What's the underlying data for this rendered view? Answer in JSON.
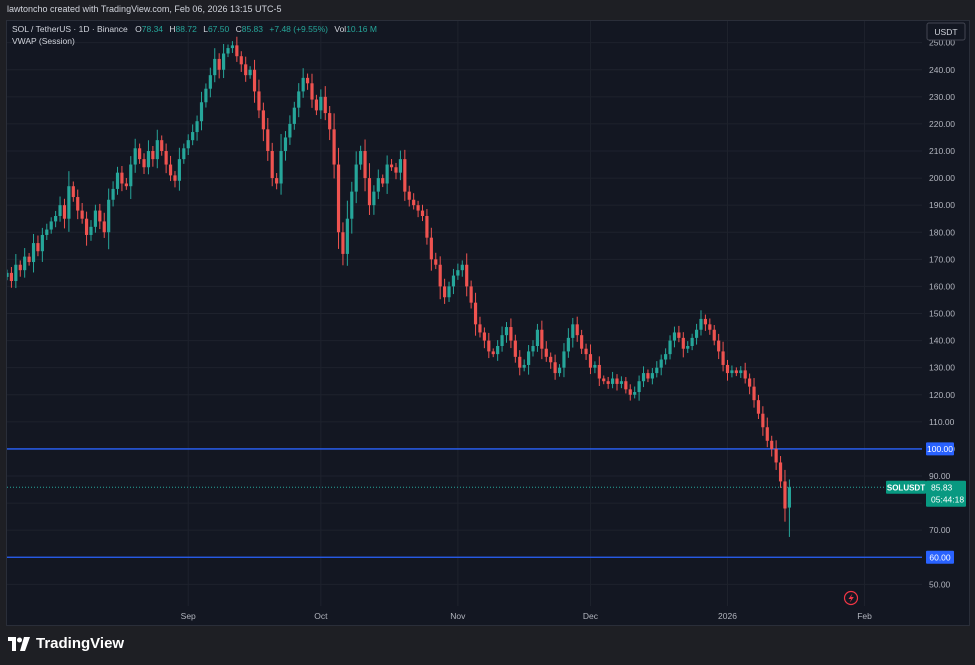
{
  "header": {
    "credit": "lawtoncho created with TradingView.com, Feb 06, 2026 13:15 UTC-5"
  },
  "legend": {
    "symbol": "SOL / TetherUS · 1D · Binance",
    "o_label": "O",
    "o": "78.34",
    "h_label": "H",
    "h": "88.72",
    "l_label": "L",
    "l": "67.50",
    "c_label": "C",
    "c": "85.83",
    "change": "+7.48 (+9.55%)",
    "vol_label": "Vol",
    "vol": "10.16 M",
    "indicator": "VWAP (Session)"
  },
  "currency_button": "USDT",
  "price_tag": {
    "symbol": "SOLUSDT",
    "price": "85.83",
    "countdown": "05:44:18"
  },
  "levels": [
    {
      "value": 100,
      "label": "100.00"
    },
    {
      "value": 60,
      "label": "60.00"
    }
  ],
  "footer": {
    "brand": "TradingView"
  },
  "colors": {
    "up": "#26a69a",
    "down": "#ef5350",
    "level": "#2962ff",
    "background": "#131722",
    "grid": "#1e222d",
    "text": "#b2b5be"
  },
  "chart_data": {
    "type": "candlestick",
    "title": "SOL / TetherUS · 1D · Binance",
    "y_axis": {
      "range": [
        42,
        258
      ],
      "ticks": [
        50,
        60,
        70,
        80,
        90,
        100,
        110,
        120,
        130,
        140,
        150,
        160,
        170,
        180,
        190,
        200,
        210,
        220,
        230,
        240,
        250
      ],
      "position": "right"
    },
    "x_axis": {
      "range": [
        "2025-07-22",
        "2026-02-14"
      ],
      "ticks": [
        {
          "date": "2025-09-01",
          "label": "Sep"
        },
        {
          "date": "2025-10-01",
          "label": "Oct"
        },
        {
          "date": "2025-11-01",
          "label": "Nov"
        },
        {
          "date": "2025-12-01",
          "label": "Dec"
        },
        {
          "date": "2026-01-01",
          "label": "2026"
        },
        {
          "date": "2026-02-01",
          "label": "Feb"
        }
      ]
    },
    "grid": true,
    "horizontal_lines": [
      100,
      60
    ],
    "last_price": 85.83,
    "series_start": "2025-07-22",
    "closes": [
      165,
      162,
      168,
      166,
      171,
      169,
      176,
      173,
      179,
      181,
      184,
      186,
      190,
      185,
      197,
      193,
      188,
      185,
      179,
      182,
      188,
      184,
      180,
      192,
      196,
      202,
      198,
      197,
      205,
      211,
      207,
      204,
      210,
      207,
      214,
      210,
      205,
      201,
      199,
      207,
      211,
      214,
      217,
      221,
      228,
      233,
      238,
      244,
      240,
      246,
      248,
      249,
      245,
      242,
      238,
      240,
      232,
      225,
      218,
      210,
      200,
      198,
      210,
      215,
      220,
      226,
      232,
      237,
      235,
      229,
      225,
      230,
      224,
      218,
      205,
      180,
      172,
      185,
      195,
      205,
      210,
      200,
      190,
      195,
      200,
      198,
      205,
      204,
      202,
      207,
      195,
      192,
      190,
      188,
      186,
      178,
      170,
      168,
      160,
      156,
      160,
      164,
      166,
      168,
      160,
      154,
      146,
      143,
      140,
      136,
      135,
      138,
      142,
      145,
      140,
      134,
      130,
      131,
      136,
      138,
      144,
      137,
      134,
      132,
      128,
      130,
      136,
      141,
      146,
      142,
      137,
      135,
      130,
      131,
      126,
      125,
      124,
      126,
      124,
      125,
      122,
      120,
      121,
      125,
      128,
      126,
      128,
      130,
      133,
      135,
      140,
      143,
      141,
      137,
      138,
      141,
      144,
      148,
      146,
      144,
      140,
      136,
      131,
      128,
      129,
      128,
      129,
      126,
      123,
      118,
      113,
      108,
      103,
      100,
      95,
      88,
      78,
      85.83
    ],
    "last_candle": {
      "date": "2026-02-06",
      "open": 78.34,
      "high": 88.72,
      "low": 67.5,
      "close": 85.83
    }
  }
}
